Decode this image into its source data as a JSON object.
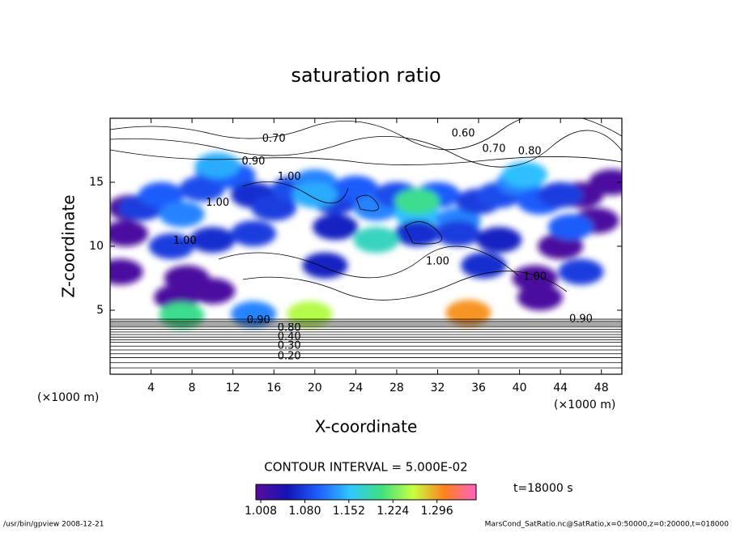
{
  "chart_data": {
    "type": "contour",
    "title": "saturation ratio",
    "xlabel": "X-coordinate",
    "ylabel": "Z-coordinate",
    "xunit": "(×1000 m)",
    "yunit": "(×1000 m)",
    "xlim": [
      0,
      50
    ],
    "ylim": [
      0,
      20
    ],
    "xticks": [
      4,
      8,
      12,
      16,
      20,
      24,
      28,
      32,
      36,
      40,
      44,
      48
    ],
    "yticks": [
      5,
      10,
      15
    ],
    "field": {
      "x": [
        1,
        1.5,
        2,
        6.5,
        7.5,
        10,
        10.5,
        46,
        47.5,
        49,
        44,
        42,
        41.5,
        3,
        5,
        7,
        9,
        12,
        14,
        16,
        18,
        20,
        22,
        24,
        26,
        28,
        30,
        32,
        34,
        36,
        38,
        40,
        42,
        44,
        6,
        10,
        14,
        22,
        26,
        30,
        34,
        38,
        46,
        10.5,
        20,
        30,
        26,
        40.5,
        19.5,
        35,
        7,
        14,
        45,
        21,
        36.5
      ],
      "z": [
        8,
        11,
        13,
        6,
        7.5,
        6.5,
        16,
        14,
        12,
        15,
        10,
        6,
        7.5,
        13,
        14,
        12.5,
        14.5,
        15.5,
        14,
        13,
        14.5,
        15,
        13.5,
        14.5,
        13,
        14,
        12.5,
        14,
        12,
        13.5,
        14,
        15,
        13.5,
        14,
        10,
        10.5,
        11,
        11.5,
        10.5,
        11,
        11,
        10.5,
        8,
        16.3,
        14,
        13.5,
        10.5,
        15.6,
        4.7,
        4.8,
        4.6,
        4.7,
        11.5,
        8.5,
        8.5
      ],
      "value": [
        1.01,
        1.01,
        1.01,
        1.01,
        1.01,
        1.01,
        1.1,
        1.01,
        1.01,
        1.01,
        1.01,
        1.01,
        1.01,
        1.08,
        1.1,
        1.12,
        1.09,
        1.1,
        1.07,
        1.08,
        1.09,
        1.12,
        1.08,
        1.1,
        1.12,
        1.09,
        1.15,
        1.1,
        1.12,
        1.08,
        1.09,
        1.12,
        1.1,
        1.08,
        1.08,
        1.07,
        1.08,
        1.06,
        1.09,
        1.07,
        1.08,
        1.06,
        1.08,
        1.14,
        1.14,
        1.2,
        1.18,
        1.15,
        1.25,
        1.3,
        1.2,
        1.12,
        1.1,
        1.06,
        1.07
      ]
    },
    "bottom_contours": [
      0.5,
      0.9,
      1.3,
      1.6,
      1.9,
      2.2,
      2.5,
      2.7,
      2.9,
      3.1,
      3.3,
      3.5,
      3.7,
      3.85,
      4.0,
      4.15,
      4.3
    ],
    "annotations": [
      {
        "text": "0.70",
        "x": 16,
        "z": 18.4
      },
      {
        "text": "0.60",
        "x": 34.5,
        "z": 18.8
      },
      {
        "text": "0.70",
        "x": 37.5,
        "z": 17.6
      },
      {
        "text": "0.80",
        "x": 41,
        "z": 17.4
      },
      {
        "text": "0.90",
        "x": 14,
        "z": 16.6
      },
      {
        "text": "1.00",
        "x": 17.5,
        "z": 15.4
      },
      {
        "text": "1.00",
        "x": 10.5,
        "z": 13.4
      },
      {
        "text": "1.00",
        "x": 7.3,
        "z": 10.4
      },
      {
        "text": "1.00",
        "x": 32,
        "z": 8.8
      },
      {
        "text": "1.00",
        "x": 41.5,
        "z": 7.6
      },
      {
        "text": "0.90",
        "x": 14.5,
        "z": 4.2
      },
      {
        "text": "0.80",
        "x": 17.5,
        "z": 3.6
      },
      {
        "text": "0.40",
        "x": 17.5,
        "z": 2.9
      },
      {
        "text": "0.30",
        "x": 17.5,
        "z": 2.2
      },
      {
        "text": "0.20",
        "x": 17.5,
        "z": 1.4
      },
      {
        "text": "0.90",
        "x": 46,
        "z": 4.3
      }
    ],
    "contour_interval": "CONTOUR INTERVAL = 5.000E-02",
    "time_label": "t=18000 s",
    "footer_left": "/usr/bin/gpview   2008-12-21",
    "footer_right": "MarsCond_SatRatio.nc@SatRatio,x=0:50000,z=0:20000,t=018000",
    "colorbar": {
      "lim": [
        1.0,
        1.36
      ],
      "ticks": [
        1.008,
        {
          "value": 1.08,
          "label": "1.080"
        },
        1.152,
        1.224,
        1.296
      ],
      "colors": [
        "#5a0c9a",
        "#1414b4",
        "#2060ff",
        "#30c8ff",
        "#40e080",
        "#c8ff40",
        "#ff8020",
        "#ff60c0"
      ]
    }
  }
}
